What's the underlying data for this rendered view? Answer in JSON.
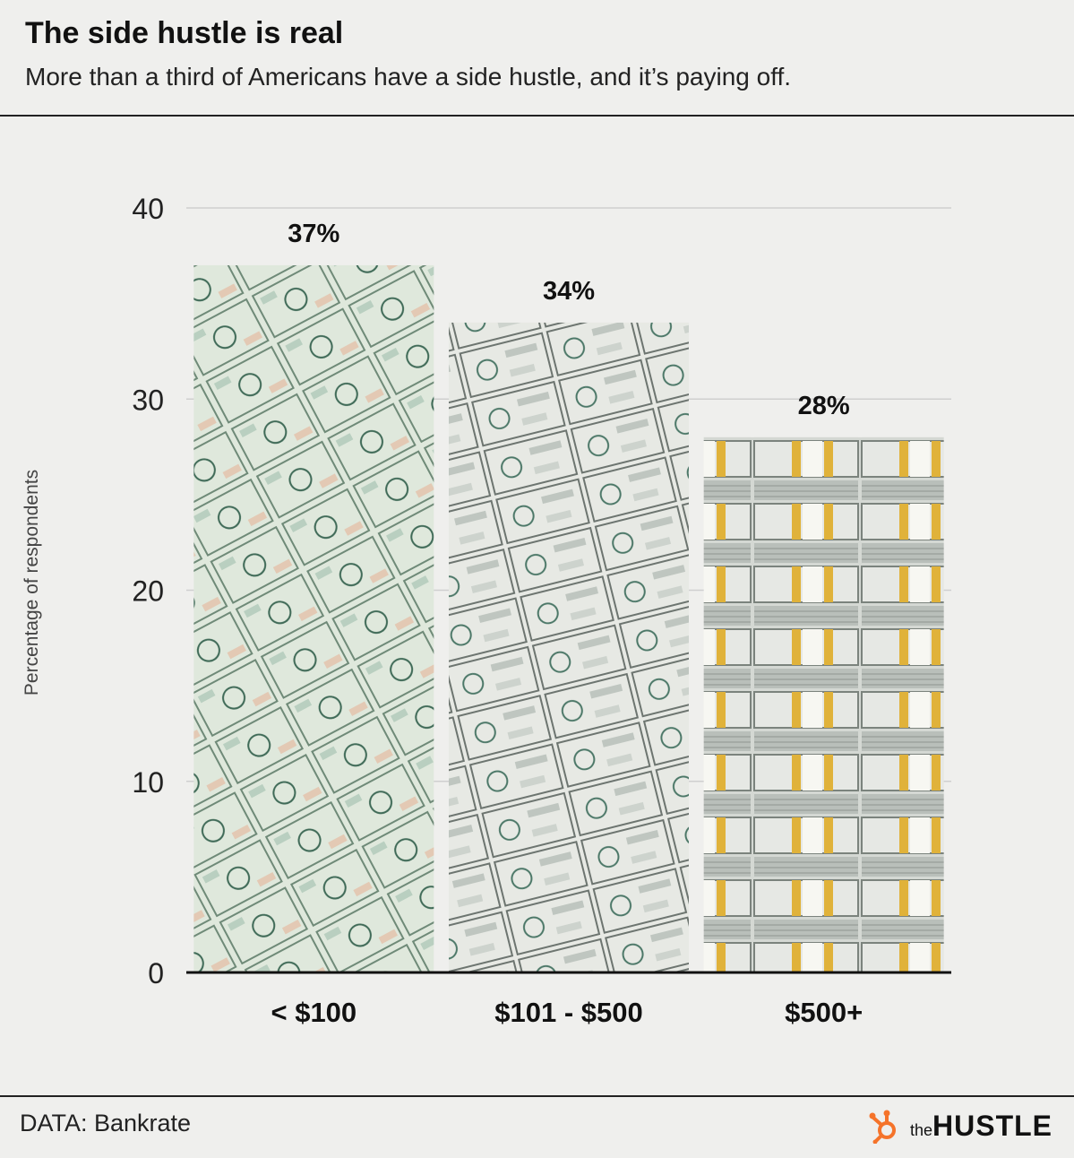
{
  "header": {
    "title": "The side hustle is real",
    "subtitle": "More than a third of Americans have a side hustle, and it’s paying off."
  },
  "footer": {
    "source": "DATA: Bankrate",
    "brand_prefix": "the",
    "brand_name": "HUSTLE"
  },
  "colors": {
    "background": "#efefed",
    "text": "#111111",
    "grid": "#cfcfcf",
    "accent_logo": "#f5732a",
    "bar_fills": [
      "#cfe0d2",
      "#d9ddd7",
      "#c9cec9"
    ]
  },
  "chart_data": {
    "type": "bar",
    "title": "The side hustle is real",
    "subtitle": "More than a third of Americans have a side hustle, and it’s paying off.",
    "categories": [
      "< $100",
      "$101 - $500",
      "$500+"
    ],
    "values": [
      37,
      34,
      28
    ],
    "value_labels": [
      "37%",
      "34%",
      "28%"
    ],
    "xlabel": "",
    "ylabel": "Percentage of respondents",
    "ylim": [
      0,
      40
    ],
    "yticks": [
      0,
      10,
      20,
      30,
      40
    ],
    "grid": true,
    "legend": "none",
    "bar_texture": "money / dollar bill photos"
  }
}
